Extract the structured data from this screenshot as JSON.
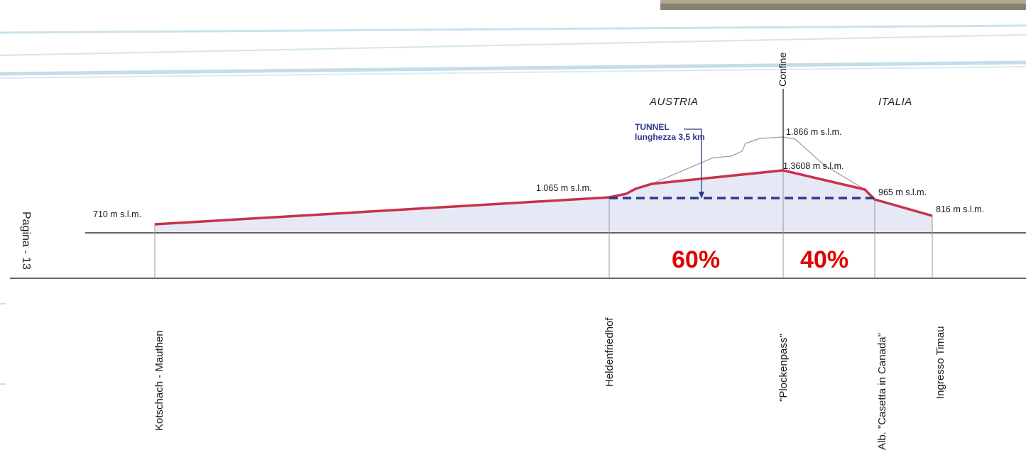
{
  "regions": {
    "left": "AUSTRIA",
    "right": "ITALIA"
  },
  "confine": "Confine",
  "tunnel": {
    "title": "TUNNEL",
    "length": "lunghezza 3,5 km"
  },
  "elevations": {
    "kotschach": "710 m s.l.m.",
    "heldenfriedhof": "1.065 m s.l.m.",
    "pass_surface": "1.866 m s.l.m.",
    "pass_road": "1.3608 m s.l.m.",
    "casetta": "965 m s.l.m.",
    "timau": "816 m s.l.m."
  },
  "shares": {
    "austria": "60%",
    "italia": "40%"
  },
  "stations": {
    "kotschach": "Kotschach - Mauthen",
    "heldenfriedhof": "Heldenfriedhof",
    "plockenpass": "\"Plockenpass\"",
    "casetta": "Alb. \"Casetta in Canada\"",
    "timau": "Ingresso Timau"
  },
  "page": "Pagina - 13",
  "colors": {
    "road": "#c8324b",
    "tunnel": "#2b3a8c",
    "fill": "#e6e9f5",
    "percent": "#e00000"
  }
}
